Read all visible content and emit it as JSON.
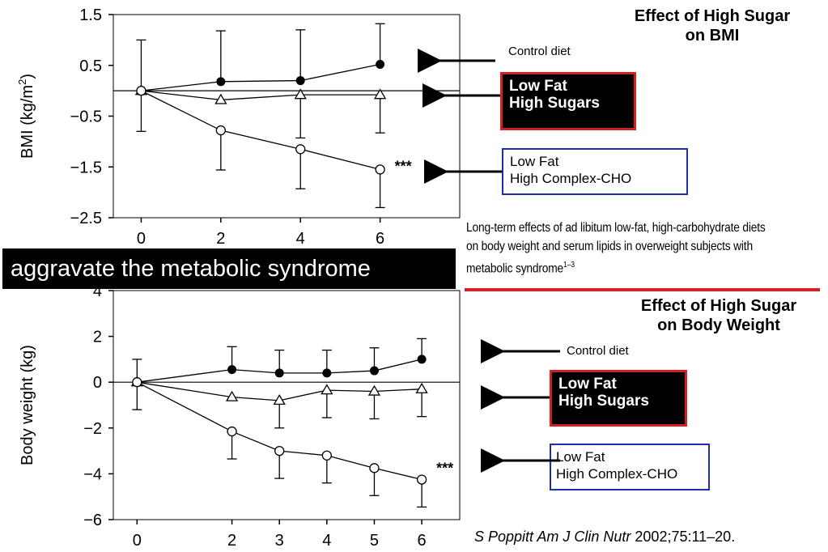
{
  "chart_data": [
    {
      "type": "line",
      "title": "Effect of High Sugar on BMI",
      "title_lines": [
        "Effect of High Sugar",
        "on BMI"
      ],
      "ylabel_main": "BMI (kg/m",
      "ylabel_sup": "2",
      "ylabel_end": ")",
      "xlabel": "",
      "ylim": [
        -2.5,
        1.5
      ],
      "xlim": [
        -0.7,
        8
      ],
      "grid": false,
      "x_ticks": [
        0,
        2,
        4,
        6
      ],
      "x_tick_labels": [
        "0",
        "2",
        "4",
        "6"
      ],
      "y_ticks": [
        1.5,
        0.5,
        -0.5,
        -1.5,
        -2.5
      ],
      "y_tick_labels": [
        "1.5",
        "0.5",
        "−0.5",
        "−1.5",
        "−2.5"
      ],
      "series": [
        {
          "marker": "filled-circle",
          "x": [
            0,
            2,
            4,
            6
          ],
          "values": [
            0,
            0.18,
            0.2,
            0.52
          ],
          "err_up": [
            1.0,
            1.0,
            1.0,
            0.8
          ],
          "err_down": [
            0.8,
            0,
            0,
            0
          ]
        },
        {
          "marker": "open-triangle",
          "x": [
            0,
            2,
            4,
            6
          ],
          "values": [
            0,
            -0.18,
            -0.08,
            -0.08
          ],
          "err_up": [
            0,
            0,
            0,
            0
          ],
          "err_down": [
            0,
            0,
            0.85,
            0.75
          ]
        },
        {
          "marker": "open-circle",
          "x": [
            0,
            2,
            4,
            6
          ],
          "values": [
            0,
            -0.78,
            -1.15,
            -1.55
          ],
          "err_up": [
            0,
            0,
            0,
            0
          ],
          "err_down": [
            0,
            0.78,
            0.78,
            0.75
          ]
        }
      ],
      "annotation": "***"
    },
    {
      "type": "line",
      "title": "Effect of High Sugar on Body Weight",
      "title_lines": [
        "Effect of High Sugar",
        "on Body Weight"
      ],
      "ylabel": "Body weight (kg)",
      "xlabel": "",
      "ylim": [
        -6,
        4
      ],
      "xlim": [
        -0.5,
        6.8
      ],
      "grid": false,
      "x_ticks": [
        0,
        2,
        3,
        4,
        5,
        6
      ],
      "x_tick_labels": [
        "0",
        "2",
        "3",
        "4",
        "5",
        "6"
      ],
      "y_ticks": [
        4,
        2,
        0,
        -2,
        -4,
        -6
      ],
      "y_tick_labels": [
        "4",
        "2",
        "0",
        "−2",
        "−4",
        "−6"
      ],
      "series": [
        {
          "marker": "filled-circle",
          "x": [
            0,
            2,
            3,
            4,
            5,
            6
          ],
          "values": [
            0,
            0.55,
            0.4,
            0.4,
            0.5,
            1.0
          ],
          "err_up": [
            1.0,
            1.0,
            1.0,
            1.0,
            1.0,
            0.9
          ],
          "err_down": [
            1.2,
            0,
            0,
            0,
            0,
            0
          ]
        },
        {
          "marker": "open-triangle",
          "x": [
            0,
            2,
            3,
            4,
            5,
            6
          ],
          "values": [
            0,
            -0.65,
            -0.8,
            -0.35,
            -0.4,
            -0.3
          ],
          "err_up": [
            0,
            0,
            0,
            0,
            0,
            0
          ],
          "err_down": [
            0,
            0,
            1.2,
            1.2,
            1.2,
            1.2
          ]
        },
        {
          "marker": "open-circle",
          "x": [
            0,
            2,
            3,
            4,
            5,
            6
          ],
          "values": [
            0,
            -2.15,
            -3.0,
            -3.2,
            -3.75,
            -4.25
          ],
          "err_up": [
            0,
            0,
            0,
            0,
            0,
            0
          ],
          "err_down": [
            0,
            1.2,
            1.2,
            1.2,
            1.2,
            1.2
          ]
        }
      ],
      "annotation": "***"
    }
  ],
  "legend_top": {
    "control": "Control diet",
    "sugar_1": "Low Fat",
    "sugar_2": "High Sugars",
    "cho_1": "Low Fat",
    "cho_2": "High Complex-CHO"
  },
  "legend_bottom": {
    "control": "Control diet",
    "sugar_1": "Low Fat",
    "sugar_2": "High Sugars",
    "cho_1": "Low Fat",
    "cho_2": "High Complex-CHO"
  },
  "description": {
    "line1": "Long-term effects of ad libitum low-fat, high-carbohydrate diets",
    "line2": "on body weight and serum lipids in overweight subjects with",
    "line3": "metabolic syndrome",
    "sup": "1–3"
  },
  "banner": "aggravate the metabolic syndrome",
  "citation": {
    "author": "S Poppitt Am J Clin Nutr",
    "rest": " 2002;75:11–20."
  },
  "colors": {
    "red": "#d42020",
    "blue": "#1a2fb0",
    "black": "#000000"
  }
}
